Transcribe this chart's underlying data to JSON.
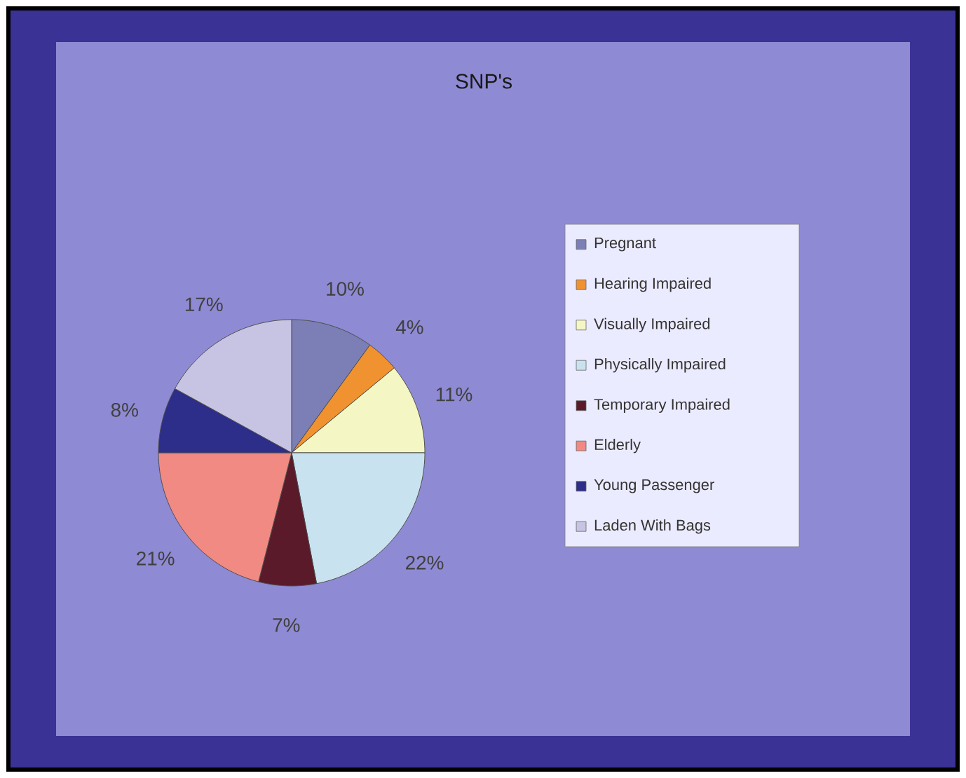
{
  "chart_data": {
    "type": "pie",
    "title": "SNP's",
    "categories": [
      "Pregnant",
      "Hearing Impaired",
      "Visually Impaired",
      "Physically Impaired",
      "Temporary Impaired",
      "Elderly",
      "Young Passenger",
      "Laden With Bags"
    ],
    "values": [
      10,
      4,
      11,
      22,
      7,
      21,
      8,
      17
    ],
    "value_labels": [
      "10%",
      "4%",
      "11%",
      "22%",
      "7%",
      "21%",
      "8%",
      "17%"
    ],
    "colors": [
      "#7b7fb5",
      "#f0922f",
      "#f4f7c4",
      "#c8e3ef",
      "#5a1a2a",
      "#f08a82",
      "#2d2d8a",
      "#c6c3e3"
    ],
    "legend": "right"
  }
}
